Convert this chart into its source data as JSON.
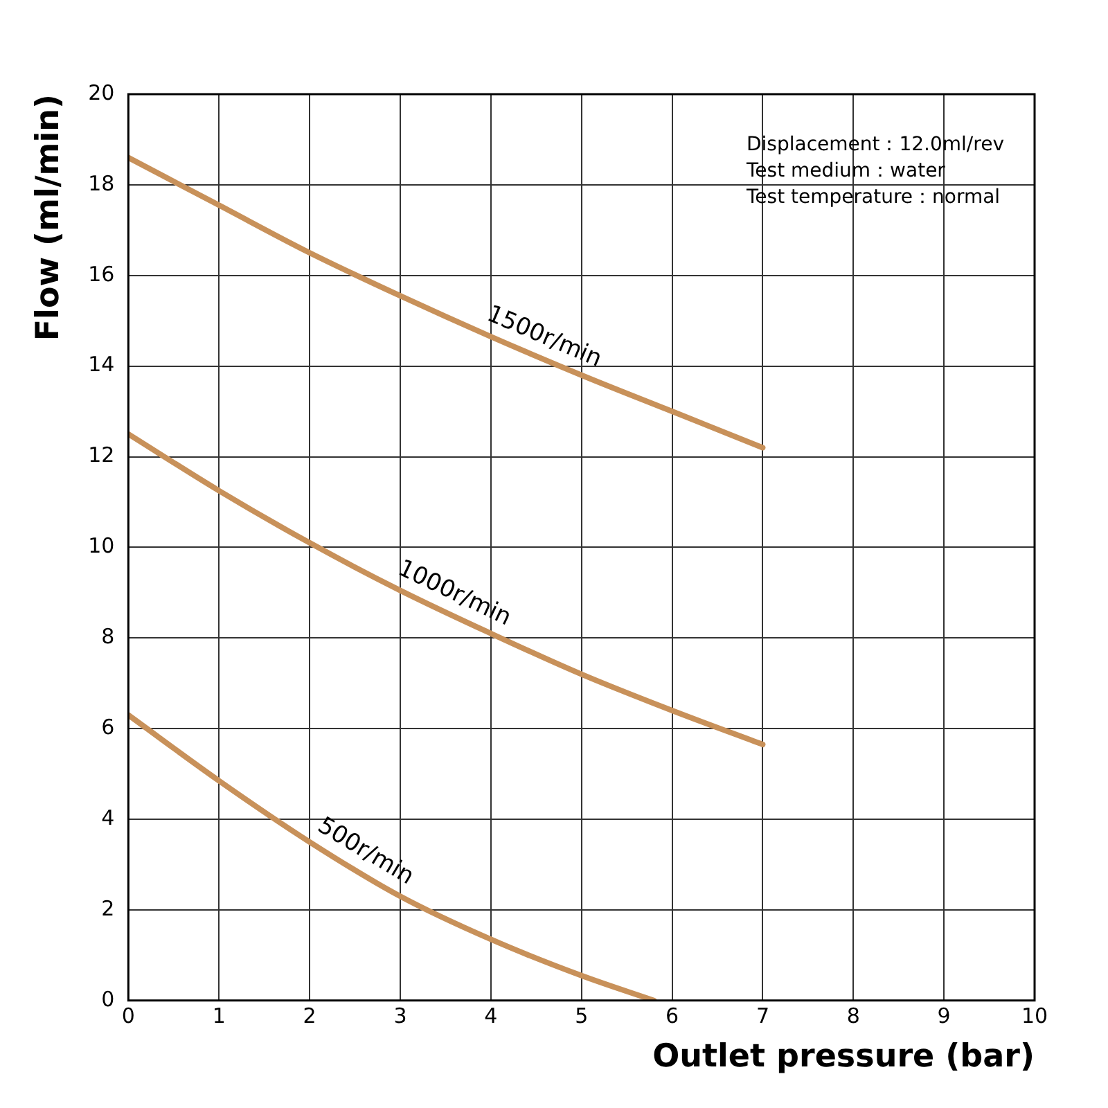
{
  "chart_data": {
    "type": "line",
    "xlabel": "Outlet pressure (bar)",
    "ylabel": "Flow (ml/min)",
    "xlim": [
      0,
      10
    ],
    "xticks": [
      0,
      1,
      2,
      3,
      4,
      5,
      6,
      7,
      8,
      9,
      10
    ],
    "ylim": [
      0,
      20
    ],
    "yticks": [
      0,
      2,
      4,
      6,
      8,
      10,
      12,
      14,
      16,
      18,
      20
    ],
    "grid": true,
    "legend": false,
    "marker": "none",
    "line_style": "solid",
    "series": [
      {
        "name": "1500r/min",
        "color": "#c8915a",
        "x": [
          0,
          1,
          2,
          3,
          4,
          5,
          6,
          7
        ],
        "values": [
          18.6,
          17.55,
          16.5,
          15.55,
          14.65,
          13.8,
          13.0,
          12.2
        ]
      },
      {
        "name": "1000r/min",
        "color": "#c8915a",
        "x": [
          0,
          1,
          2,
          3,
          4,
          5,
          6,
          7
        ],
        "values": [
          12.5,
          11.25,
          10.1,
          9.05,
          8.1,
          7.2,
          6.4,
          5.65
        ]
      },
      {
        "name": "500r/min",
        "color": "#c8915a",
        "x": [
          0,
          1,
          2,
          3,
          4,
          5,
          5.8
        ],
        "values": [
          6.3,
          4.85,
          3.5,
          2.3,
          1.35,
          0.55,
          0
        ]
      }
    ],
    "annotations": [
      "Displacement：12.0ml/rev",
      "Test medium：water",
      "Test temperature：normal"
    ]
  }
}
